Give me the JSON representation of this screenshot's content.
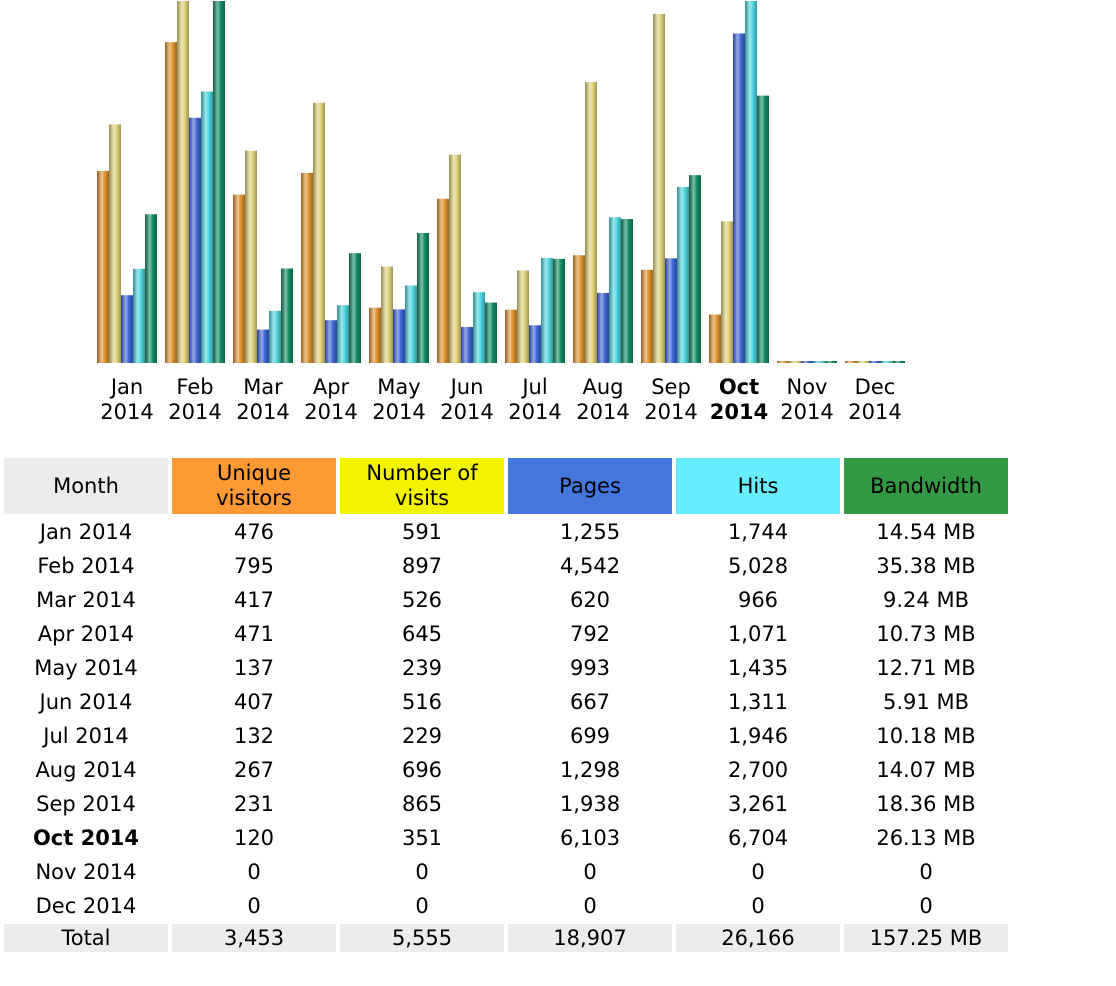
{
  "chart_data": {
    "type": "bar",
    "categories": [
      "Jan 2014",
      "Feb 2014",
      "Mar 2014",
      "Apr 2014",
      "May 2014",
      "Jun 2014",
      "Jul 2014",
      "Aug 2014",
      "Sep 2014",
      "Oct 2014",
      "Nov 2014",
      "Dec 2014"
    ],
    "category_labels": [
      [
        "Jan",
        "2014"
      ],
      [
        "Feb",
        "2014"
      ],
      [
        "Mar",
        "2014"
      ],
      [
        "Apr",
        "2014"
      ],
      [
        "May",
        "2014"
      ],
      [
        "Jun",
        "2014"
      ],
      [
        "Jul",
        "2014"
      ],
      [
        "Aug",
        "2014"
      ],
      [
        "Sep",
        "2014"
      ],
      [
        "Oct",
        "2014"
      ],
      [
        "Nov",
        "2014"
      ],
      [
        "Dec",
        "2014"
      ]
    ],
    "current_index": 9,
    "series": [
      {
        "name": "Unique visitors",
        "values": [
          476,
          795,
          417,
          471,
          137,
          407,
          132,
          267,
          231,
          120,
          0,
          0
        ],
        "color": "#e0922e"
      },
      {
        "name": "Number of visits",
        "values": [
          591,
          897,
          526,
          645,
          239,
          516,
          229,
          696,
          865,
          351,
          0,
          0
        ],
        "color": "#e2d27a"
      },
      {
        "name": "Pages",
        "values": [
          1255,
          4542,
          620,
          792,
          993,
          667,
          699,
          1298,
          1938,
          6103,
          0,
          0
        ],
        "color": "#3f66d6"
      },
      {
        "name": "Hits",
        "values": [
          1744,
          5028,
          966,
          1071,
          1435,
          1311,
          1946,
          2700,
          3261,
          6704,
          0,
          0
        ],
        "color": "#4fd6e0"
      },
      {
        "name": "Bandwidth (MB)",
        "values": [
          14.54,
          35.38,
          9.24,
          10.73,
          12.71,
          5.91,
          10.18,
          14.07,
          18.36,
          26.13,
          0,
          0
        ],
        "color": "#138a66"
      }
    ],
    "scale_groups": [
      [
        0,
        1
      ],
      [
        2,
        3
      ],
      [
        4
      ]
    ],
    "grid": false,
    "legend": "none"
  },
  "table": {
    "headers": {
      "month": "Month",
      "unique": [
        "Unique",
        "visitors"
      ],
      "visits": [
        "Number of",
        "visits"
      ],
      "pages": "Pages",
      "hits": "Hits",
      "bandwidth": "Bandwidth"
    },
    "colors": {
      "month": "#ececec",
      "unique": "#ff9933",
      "visits": "#f3f300",
      "pages": "#4477dd",
      "hits": "#66eeff",
      "bandwidth": "#339944"
    },
    "rows": [
      {
        "month": "Jan 2014",
        "unique": "476",
        "visits": "591",
        "pages": "1,255",
        "hits": "1,744",
        "bandwidth": "14.54 MB"
      },
      {
        "month": "Feb 2014",
        "unique": "795",
        "visits": "897",
        "pages": "4,542",
        "hits": "5,028",
        "bandwidth": "35.38 MB"
      },
      {
        "month": "Mar 2014",
        "unique": "417",
        "visits": "526",
        "pages": "620",
        "hits": "966",
        "bandwidth": "9.24 MB"
      },
      {
        "month": "Apr 2014",
        "unique": "471",
        "visits": "645",
        "pages": "792",
        "hits": "1,071",
        "bandwidth": "10.73 MB"
      },
      {
        "month": "May 2014",
        "unique": "137",
        "visits": "239",
        "pages": "993",
        "hits": "1,435",
        "bandwidth": "12.71 MB"
      },
      {
        "month": "Jun 2014",
        "unique": "407",
        "visits": "516",
        "pages": "667",
        "hits": "1,311",
        "bandwidth": "5.91 MB"
      },
      {
        "month": "Jul 2014",
        "unique": "132",
        "visits": "229",
        "pages": "699",
        "hits": "1,946",
        "bandwidth": "10.18 MB"
      },
      {
        "month": "Aug 2014",
        "unique": "267",
        "visits": "696",
        "pages": "1,298",
        "hits": "2,700",
        "bandwidth": "14.07 MB"
      },
      {
        "month": "Sep 2014",
        "unique": "231",
        "visits": "865",
        "pages": "1,938",
        "hits": "3,261",
        "bandwidth": "18.36 MB"
      },
      {
        "month": "Oct 2014",
        "unique": "120",
        "visits": "351",
        "pages": "6,103",
        "hits": "6,704",
        "bandwidth": "26.13 MB"
      },
      {
        "month": "Nov 2014",
        "unique": "0",
        "visits": "0",
        "pages": "0",
        "hits": "0",
        "bandwidth": "0"
      },
      {
        "month": "Dec 2014",
        "unique": "0",
        "visits": "0",
        "pages": "0",
        "hits": "0",
        "bandwidth": "0"
      }
    ],
    "total": {
      "month": "Total",
      "unique": "3,453",
      "visits": "5,555",
      "pages": "18,907",
      "hits": "26,166",
      "bandwidth": "157.25 MB"
    }
  }
}
